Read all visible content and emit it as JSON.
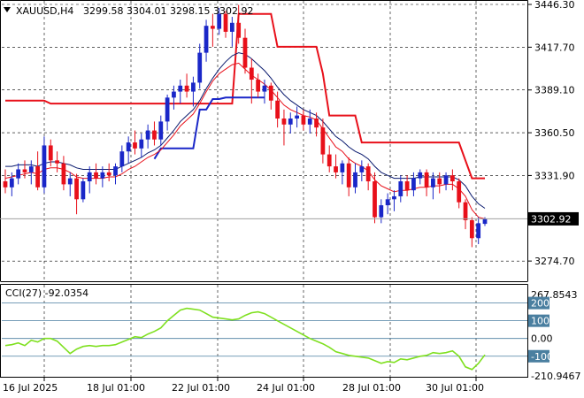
{
  "header": {
    "symbol_text": "XAUUSD,H4",
    "ohlc_text": "3299.58 3304.01 3298.15 3302.92"
  },
  "colors": {
    "bull": "#1a27c8",
    "bear": "#e8101a",
    "fast_ma": "#0a1a6e",
    "slow_ma": "#e8101a",
    "cci": "#7fe020",
    "grid": "#c8c8c8",
    "level_line": "#4a7fa0"
  },
  "chart_data": [
    {
      "type": "candlestick",
      "title": "XAUUSD,H4",
      "ylim": [
        3260,
        3446.3
      ],
      "y_ticks": [
        "3446.30",
        "3417.70",
        "3389.10",
        "3360.50",
        "3331.90",
        "3274.70"
      ],
      "last_price_label": "3302.92",
      "x_labels": [
        "16 Jul 2025",
        "18 Jul 01:00",
        "22 Jul 01:00",
        "24 Jul 01:00",
        "28 Jul 01:00",
        "30 Jul 01:00"
      ],
      "candles": [
        [
          3328,
          3336,
          3320,
          3324
        ],
        [
          3324,
          3334,
          3318,
          3330
        ],
        [
          3330,
          3340,
          3326,
          3336
        ],
        [
          3336,
          3342,
          3330,
          3334
        ],
        [
          3334,
          3342,
          3326,
          3338
        ],
        [
          3338,
          3348,
          3322,
          3324
        ],
        [
          3324,
          3358,
          3320,
          3352
        ],
        [
          3352,
          3356,
          3338,
          3342
        ],
        [
          3342,
          3348,
          3334,
          3340
        ],
        [
          3340,
          3345,
          3322,
          3326
        ],
        [
          3326,
          3334,
          3318,
          3330
        ],
        [
          3330,
          3333,
          3306,
          3316
        ],
        [
          3316,
          3330,
          3314,
          3328
        ],
        [
          3328,
          3338,
          3320,
          3334
        ],
        [
          3334,
          3340,
          3326,
          3330
        ],
        [
          3330,
          3338,
          3324,
          3334
        ],
        [
          3334,
          3340,
          3328,
          3332
        ],
        [
          3332,
          3340,
          3326,
          3338
        ],
        [
          3338,
          3352,
          3334,
          3348
        ],
        [
          3348,
          3358,
          3340,
          3354
        ],
        [
          3354,
          3362,
          3346,
          3350
        ],
        [
          3350,
          3360,
          3344,
          3356
        ],
        [
          3356,
          3366,
          3350,
          3362
        ],
        [
          3362,
          3368,
          3352,
          3356
        ],
        [
          3356,
          3372,
          3352,
          3368
        ],
        [
          3368,
          3386,
          3362,
          3384
        ],
        [
          3384,
          3392,
          3376,
          3388
        ],
        [
          3388,
          3396,
          3380,
          3392
        ],
        [
          3392,
          3400,
          3384,
          3388
        ],
        [
          3388,
          3398,
          3378,
          3394
        ],
        [
          3394,
          3420,
          3390,
          3414
        ],
        [
          3414,
          3436,
          3408,
          3432
        ],
        [
          3432,
          3440,
          3418,
          3430
        ],
        [
          3430,
          3444,
          3426,
          3440
        ],
        [
          3440,
          3442,
          3424,
          3428
        ],
        [
          3428,
          3438,
          3418,
          3434
        ],
        [
          3434,
          3446,
          3420,
          3424
        ],
        [
          3424,
          3430,
          3400,
          3404
        ],
        [
          3404,
          3410,
          3380,
          3396
        ],
        [
          3396,
          3400,
          3384,
          3388
        ],
        [
          3388,
          3396,
          3380,
          3392
        ],
        [
          3392,
          3394,
          3376,
          3382
        ],
        [
          3382,
          3388,
          3364,
          3370
        ],
        [
          3370,
          3376,
          3352,
          3366
        ],
        [
          3366,
          3374,
          3360,
          3370
        ],
        [
          3370,
          3378,
          3364,
          3372
        ],
        [
          3372,
          3376,
          3362,
          3366
        ],
        [
          3366,
          3376,
          3360,
          3370
        ],
        [
          3370,
          3374,
          3358,
          3364
        ],
        [
          3364,
          3370,
          3340,
          3346
        ],
        [
          3346,
          3352,
          3334,
          3338
        ],
        [
          3338,
          3346,
          3330,
          3334
        ],
        [
          3334,
          3342,
          3326,
          3340
        ],
        [
          3340,
          3344,
          3318,
          3324
        ],
        [
          3324,
          3340,
          3320,
          3334
        ],
        [
          3334,
          3342,
          3328,
          3338
        ],
        [
          3338,
          3340,
          3322,
          3328
        ],
        [
          3328,
          3334,
          3300,
          3304
        ],
        [
          3304,
          3316,
          3300,
          3312
        ],
        [
          3312,
          3320,
          3306,
          3316
        ],
        [
          3316,
          3322,
          3308,
          3318
        ],
        [
          3318,
          3332,
          3314,
          3328
        ],
        [
          3328,
          3332,
          3318,
          3322
        ],
        [
          3322,
          3334,
          3318,
          3330
        ],
        [
          3330,
          3336,
          3326,
          3334
        ],
        [
          3334,
          3336,
          3318,
          3324
        ],
        [
          3324,
          3334,
          3316,
          3330
        ],
        [
          3330,
          3334,
          3320,
          3326
        ],
        [
          3326,
          3334,
          3322,
          3332
        ],
        [
          3332,
          3336,
          3322,
          3328
        ],
        [
          3328,
          3330,
          3310,
          3314
        ],
        [
          3314,
          3316,
          3296,
          3302
        ],
        [
          3302,
          3304,
          3284,
          3290
        ],
        [
          3290,
          3304,
          3286,
          3300
        ],
        [
          3299.58,
          3304.01,
          3298.15,
          3302.92
        ]
      ],
      "fast_ma": [
        3338,
        3338,
        3339,
        3339,
        3339,
        3338,
        3340,
        3341,
        3341,
        3340,
        3339,
        3337,
        3336,
        3336,
        3336,
        3336,
        3336,
        3336,
        3338,
        3340,
        3342,
        3344,
        3347,
        3349,
        3352,
        3357,
        3362,
        3368,
        3372,
        3376,
        3382,
        3390,
        3397,
        3403,
        3408,
        3412,
        3414,
        3413,
        3410,
        3406,
        3402,
        3397,
        3391,
        3386,
        3382,
        3379,
        3376,
        3374,
        3372,
        3368,
        3363,
        3358,
        3355,
        3351,
        3348,
        3346,
        3343,
        3338,
        3334,
        3332,
        3330,
        3330,
        3330,
        3330,
        3331,
        3331,
        3331,
        3331,
        3331,
        3331,
        3329,
        3325,
        3318,
        3313,
        3310
      ],
      "slow_ma": [
        3330,
        3331,
        3332,
        3333,
        3334,
        3333,
        3336,
        3337,
        3337,
        3336,
        3334,
        3331,
        3330,
        3330,
        3330,
        3330,
        3331,
        3331,
        3333,
        3336,
        3338,
        3341,
        3344,
        3346,
        3349,
        3354,
        3359,
        3365,
        3369,
        3373,
        3380,
        3388,
        3395,
        3400,
        3403,
        3406,
        3407,
        3403,
        3399,
        3396,
        3393,
        3389,
        3384,
        3379,
        3376,
        3374,
        3372,
        3371,
        3369,
        3363,
        3357,
        3351,
        3348,
        3343,
        3340,
        3338,
        3335,
        3329,
        3325,
        3323,
        3321,
        3322,
        3322,
        3323,
        3324,
        3324,
        3325,
        3325,
        3326,
        3326,
        3323,
        3318,
        3309,
        3304,
        3303
      ],
      "resistance_line": [
        3382,
        3382,
        3382,
        3382,
        3382,
        3382,
        3382,
        3380,
        3380,
        3380,
        3380,
        3380,
        3380,
        3380,
        3380,
        3380,
        3380,
        3380,
        3380,
        3380,
        3380,
        3380,
        3380,
        3380,
        3380,
        3380,
        3380,
        3380,
        3380,
        3380,
        3380,
        3380,
        3380,
        3380,
        3380,
        3380,
        3440,
        3440,
        3440,
        3440,
        3440,
        3440,
        3418,
        3418,
        3418,
        3418,
        3418,
        3418,
        3418,
        3400,
        3372,
        3372,
        3372,
        3372,
        3372,
        3354,
        3354,
        3354,
        3354,
        3354,
        3354,
        3354,
        3354,
        3354,
        3354,
        3354,
        3354,
        3354,
        3354,
        3354,
        3354,
        3342,
        3330,
        3330,
        3330
      ],
      "support_line": [
        null,
        null,
        null,
        null,
        null,
        null,
        null,
        null,
        null,
        null,
        null,
        null,
        null,
        null,
        null,
        null,
        null,
        null,
        null,
        null,
        null,
        null,
        null,
        3343,
        3350,
        3350,
        3350,
        3350,
        3350,
        3350,
        3376,
        3376,
        3383,
        3383,
        3384,
        3384,
        3384,
        3384,
        3384,
        3384,
        3384,
        null,
        null,
        null,
        null,
        null,
        null,
        null,
        null,
        null,
        null,
        null,
        null,
        null,
        null,
        null,
        null,
        null,
        null,
        null,
        null,
        null,
        null,
        null,
        null,
        null,
        null,
        null,
        null,
        null,
        null,
        null,
        null,
        null,
        null
      ]
    },
    {
      "type": "line",
      "title": "CCI(27) -92.0354",
      "ylim": [
        -210.9467,
        267.8543
      ],
      "y_ticks": [
        "267.8543",
        "200",
        "100",
        "0.00",
        "-100",
        "-210.9467"
      ],
      "levels": [
        200,
        100,
        0,
        -100
      ],
      "values": [
        -40,
        -35,
        -25,
        -40,
        -10,
        -20,
        0,
        0,
        -15,
        -50,
        -85,
        -60,
        -45,
        -40,
        -45,
        -40,
        -40,
        -35,
        -20,
        -5,
        10,
        5,
        25,
        40,
        60,
        100,
        130,
        160,
        170,
        165,
        160,
        140,
        120,
        115,
        110,
        105,
        110,
        130,
        145,
        150,
        140,
        120,
        100,
        80,
        60,
        40,
        20,
        0,
        -15,
        -30,
        -50,
        -75,
        -85,
        -95,
        -100,
        -105,
        -110,
        -125,
        -140,
        -130,
        -135,
        -115,
        -120,
        -110,
        -100,
        -95,
        -80,
        -85,
        -80,
        -70,
        -100,
        -160,
        -175,
        -140,
        -92.0354
      ]
    }
  ]
}
